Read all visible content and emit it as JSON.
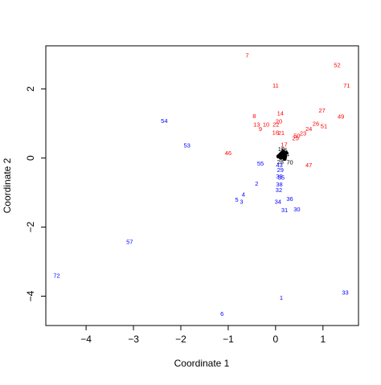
{
  "chart_data": {
    "type": "scatter",
    "title": "",
    "xlabel": "Coordinate 1",
    "ylabel": "Coordinate 2",
    "xlim": [
      -4.85,
      1.75
    ],
    "ylim": [
      -4.85,
      3.25
    ],
    "x_ticks": [
      -4,
      -3,
      -2,
      -1,
      0,
      1
    ],
    "y_ticks": [
      -4,
      -2,
      0,
      2
    ],
    "x_tick_labels": [
      "−4",
      "−3",
      "−2",
      "−1",
      "0",
      "1"
    ],
    "y_tick_labels": [
      "−4",
      "−2",
      "0",
      "2"
    ],
    "grid": false,
    "legend": "none",
    "colors": {
      "red": "#ff0000",
      "blue": "#0000ff",
      "black": "#000000",
      "axis": "#000000"
    },
    "series": [
      {
        "color_key": "red",
        "points": [
          {
            "label": "7",
            "x": -0.6,
            "y": 2.98
          },
          {
            "label": "52",
            "x": 1.3,
            "y": 2.7
          },
          {
            "label": "11",
            "x": 0.0,
            "y": 2.11
          },
          {
            "label": "71",
            "x": 1.5,
            "y": 2.11
          },
          {
            "label": "14",
            "x": 0.1,
            "y": 1.31
          },
          {
            "label": "27",
            "x": 0.98,
            "y": 1.39
          },
          {
            "label": "8",
            "x": -0.45,
            "y": 1.22
          },
          {
            "label": "49",
            "x": 1.38,
            "y": 1.21
          },
          {
            "label": "20",
            "x": 0.07,
            "y": 1.07
          },
          {
            "label": "13",
            "x": -0.4,
            "y": 0.98
          },
          {
            "label": "10",
            "x": -0.2,
            "y": 0.98
          },
          {
            "label": "22",
            "x": 0.01,
            "y": 0.98
          },
          {
            "label": "26",
            "x": 0.85,
            "y": 1.0
          },
          {
            "label": "51",
            "x": 1.02,
            "y": 0.93
          },
          {
            "label": "9",
            "x": -0.32,
            "y": 0.85
          },
          {
            "label": "24",
            "x": 0.7,
            "y": 0.85
          },
          {
            "label": "16",
            "x": 0.0,
            "y": 0.75
          },
          {
            "label": "21",
            "x": 0.12,
            "y": 0.74
          },
          {
            "label": "23",
            "x": 0.58,
            "y": 0.73
          },
          {
            "label": "50",
            "x": 0.45,
            "y": 0.65
          },
          {
            "label": "25",
            "x": 0.42,
            "y": 0.58
          },
          {
            "label": "17",
            "x": 0.18,
            "y": 0.4
          },
          {
            "label": "46",
            "x": -1.0,
            "y": 0.16
          },
          {
            "label": "47",
            "x": 0.7,
            "y": -0.2
          }
        ]
      },
      {
        "color_key": "black",
        "points": [
          {
            "label": "18",
            "x": 0.12,
            "y": 0.27
          },
          {
            "label": "15",
            "x": 0.18,
            "y": 0.23
          },
          {
            "label": "44",
            "x": 0.22,
            "y": 0.12
          },
          {
            "label": "28",
            "x": 0.1,
            "y": -0.1
          },
          {
            "label": "70",
            "x": 0.3,
            "y": -0.11
          }
        ]
      },
      {
        "color_key": "blue",
        "points": [
          {
            "label": "54",
            "x": -2.35,
            "y": 1.08
          },
          {
            "label": "53",
            "x": -1.87,
            "y": 0.38
          },
          {
            "label": "55",
            "x": -0.32,
            "y": -0.15
          },
          {
            "label": "43",
            "x": 0.08,
            "y": -0.2
          },
          {
            "label": "29",
            "x": 0.1,
            "y": -0.33
          },
          {
            "label": "39",
            "x": 0.08,
            "y": -0.52
          },
          {
            "label": "35",
            "x": 0.12,
            "y": -0.55
          },
          {
            "label": "2",
            "x": -0.4,
            "y": -0.73
          },
          {
            "label": "38",
            "x": 0.08,
            "y": -0.75
          },
          {
            "label": "32",
            "x": 0.07,
            "y": -0.92
          },
          {
            "label": "4",
            "x": -0.68,
            "y": -1.05
          },
          {
            "label": "36",
            "x": 0.3,
            "y": -1.17
          },
          {
            "label": "5",
            "x": -0.82,
            "y": -1.2
          },
          {
            "label": "3",
            "x": -0.72,
            "y": -1.25
          },
          {
            "label": "34",
            "x": 0.05,
            "y": -1.25
          },
          {
            "label": "31",
            "x": 0.19,
            "y": -1.5
          },
          {
            "label": "30",
            "x": 0.45,
            "y": -1.48
          },
          {
            "label": "57",
            "x": -3.08,
            "y": -2.42
          },
          {
            "label": "72",
            "x": -4.62,
            "y": -3.4
          },
          {
            "label": "1",
            "x": 0.12,
            "y": -4.03
          },
          {
            "label": "33",
            "x": 1.47,
            "y": -3.88
          },
          {
            "label": "6",
            "x": -1.13,
            "y": -4.5
          }
        ]
      }
    ],
    "dense_markers": [
      {
        "x": 0.1,
        "y": 0.1
      },
      {
        "x": 0.14,
        "y": 0.07
      },
      {
        "x": 0.17,
        "y": 0.1
      },
      {
        "x": 0.2,
        "y": 0.04
      },
      {
        "x": 0.06,
        "y": 0.05
      },
      {
        "x": 0.13,
        "y": 0.14
      },
      {
        "x": 0.22,
        "y": 0.15
      },
      {
        "x": 0.19,
        "y": -0.02
      },
      {
        "x": 0.11,
        "y": 0.01
      },
      {
        "x": 0.16,
        "y": 0.18
      }
    ]
  }
}
